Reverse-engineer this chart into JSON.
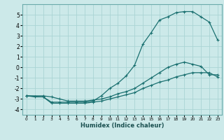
{
  "bg_color": "#cce9e9",
  "grid_color": "#aad4d4",
  "line_color": "#1a7070",
  "xlabel": "Humidex (Indice chaleur)",
  "xlim": [
    -0.5,
    23.5
  ],
  "ylim": [
    -4.5,
    6.0
  ],
  "xticks": [
    0,
    1,
    2,
    3,
    4,
    5,
    6,
    7,
    8,
    9,
    10,
    11,
    12,
    13,
    14,
    15,
    16,
    17,
    18,
    19,
    20,
    21,
    22,
    23
  ],
  "yticks": [
    -4,
    -3,
    -2,
    -1,
    0,
    1,
    2,
    3,
    4,
    5
  ],
  "line1_x": [
    0,
    1,
    2,
    3,
    4,
    5,
    6,
    7,
    8,
    9,
    10,
    11,
    12,
    13,
    14,
    15,
    16,
    17,
    18,
    19,
    20,
    21,
    22,
    23
  ],
  "line1_y": [
    -2.7,
    -2.8,
    -2.8,
    -3.3,
    -3.3,
    -3.3,
    -3.3,
    -3.3,
    -3.2,
    -2.7,
    -2.0,
    -1.5,
    -0.8,
    0.2,
    2.2,
    3.3,
    4.5,
    4.8,
    5.2,
    5.3,
    5.3,
    4.8,
    4.3,
    2.6
  ],
  "line2_x": [
    0,
    2,
    3,
    4,
    5,
    6,
    7,
    8,
    9,
    10,
    11,
    12,
    13,
    14,
    15,
    16,
    17,
    18,
    19,
    20,
    21,
    22,
    23
  ],
  "line2_y": [
    -2.7,
    -2.7,
    -2.8,
    -3.0,
    -3.2,
    -3.2,
    -3.2,
    -3.1,
    -3.0,
    -2.8,
    -2.5,
    -2.3,
    -2.0,
    -1.5,
    -1.0,
    -0.5,
    0.0,
    0.3,
    0.5,
    0.3,
    0.1,
    -0.7,
    -0.7
  ],
  "line3_x": [
    0,
    2,
    3,
    4,
    5,
    6,
    7,
    8,
    9,
    10,
    11,
    12,
    13,
    14,
    15,
    16,
    17,
    18,
    19,
    20,
    21,
    22,
    23
  ],
  "line3_y": [
    -2.7,
    -2.8,
    -3.4,
    -3.4,
    -3.4,
    -3.4,
    -3.4,
    -3.3,
    -3.2,
    -3.0,
    -2.8,
    -2.6,
    -2.4,
    -2.0,
    -1.7,
    -1.4,
    -1.2,
    -0.9,
    -0.7,
    -0.5,
    -0.5,
    -0.5,
    -0.9
  ]
}
